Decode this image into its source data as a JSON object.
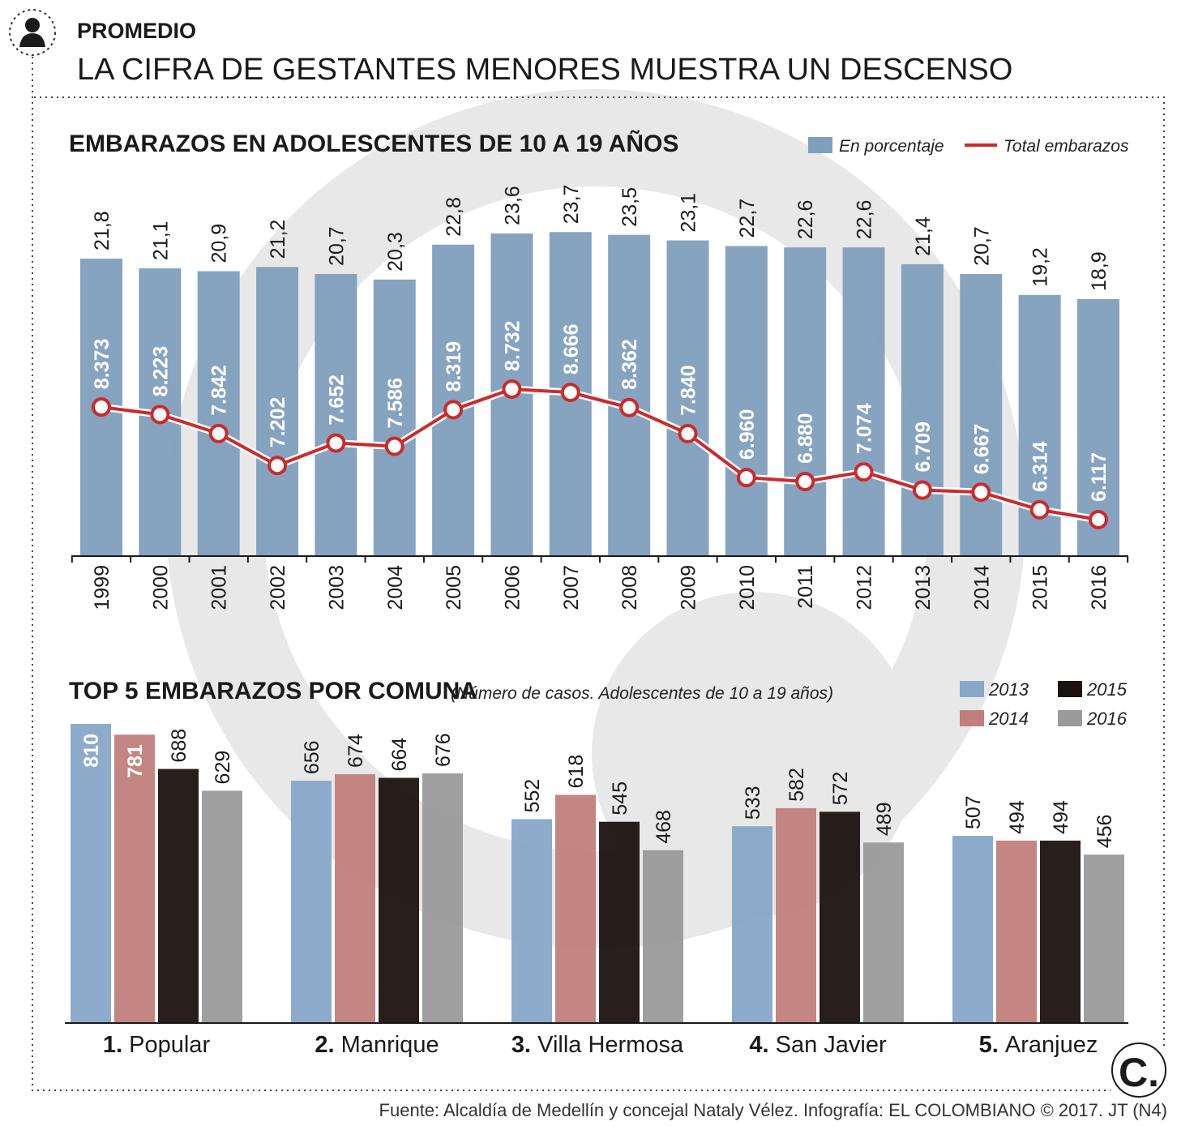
{
  "header": {
    "kicker": "PROMEDIO",
    "title": "LA CIFRA DE GESTANTES MENORES MUESTRA UN DESCENSO",
    "icon": "person-icon"
  },
  "colors": {
    "bar_pct": "#7f9fbd",
    "line": "#cc2a2a",
    "y2013": "#87a8c8",
    "y2014": "#c07f7c",
    "y2015": "#1c1310",
    "y2016": "#9a9a9a",
    "watermark": "#e6e6e6"
  },
  "chart_data": [
    {
      "type": "bar+line",
      "title": "EMBARAZOS EN ADOLESCENTES DE 10 A 19 AÑOS",
      "legend": [
        "En porcentaje",
        "Total embarazos"
      ],
      "categories": [
        "1999",
        "2000",
        "2001",
        "2002",
        "2003",
        "2004",
        "2005",
        "2006",
        "2007",
        "2008",
        "2009",
        "2010",
        "2011",
        "2012",
        "2013",
        "2014",
        "2015",
        "2016"
      ],
      "bar_labels": [
        "21,8",
        "21,1",
        "20,9",
        "21,2",
        "20,7",
        "20,3",
        "22,8",
        "23,6",
        "23,7",
        "23,5",
        "23,1",
        "22,7",
        "22,6",
        "22,6",
        "21,4",
        "20,7",
        "19,2",
        "18,9"
      ],
      "line_labels": [
        "8.373",
        "8.223",
        "7.842",
        "7.202",
        "7.652",
        "7.586",
        "8.319",
        "8.732",
        "8.666",
        "8.362",
        "7.840",
        "6.960",
        "6.880",
        "7.074",
        "6.709",
        "6.667",
        "6.314",
        "6.117"
      ],
      "series": [
        {
          "name": "En porcentaje",
          "values": [
            21.8,
            21.1,
            20.9,
            21.2,
            20.7,
            20.3,
            22.8,
            23.6,
            23.7,
            23.5,
            23.1,
            22.7,
            22.6,
            22.6,
            21.4,
            20.7,
            19.2,
            18.9
          ]
        },
        {
          "name": "Total embarazos",
          "values": [
            8373,
            8223,
            7842,
            7202,
            7652,
            7586,
            8319,
            8732,
            8666,
            8362,
            7840,
            6960,
            6880,
            7074,
            6709,
            6667,
            6314,
            6117
          ]
        }
      ]
    },
    {
      "type": "bar",
      "title": "TOP 5 EMBARAZOS POR COMUNA",
      "subtitle": "(Número de casos. Adolescentes de 10 a 19 años)",
      "categories": [
        {
          "num": "1.",
          "name": "Popular"
        },
        {
          "num": "2.",
          "name": "Manrique"
        },
        {
          "num": "3.",
          "name": "Villa Hermosa"
        },
        {
          "num": "4.",
          "name": "San Javier"
        },
        {
          "num": "5.",
          "name": "Aranjuez"
        }
      ],
      "series": [
        {
          "name": "2013",
          "values": [
            810,
            656,
            552,
            533,
            507
          ]
        },
        {
          "name": "2014",
          "values": [
            781,
            674,
            618,
            582,
            494
          ]
        },
        {
          "name": "2015",
          "values": [
            688,
            664,
            545,
            572,
            494
          ]
        },
        {
          "name": "2016",
          "values": [
            629,
            676,
            468,
            489,
            456
          ]
        }
      ]
    }
  ],
  "footer": {
    "source": "Fuente: Alcaldía de Medellín y concejal Nataly Vélez. Infografía: EL COLOMBIANO © 2017. JT (N4)",
    "logo": "C."
  }
}
